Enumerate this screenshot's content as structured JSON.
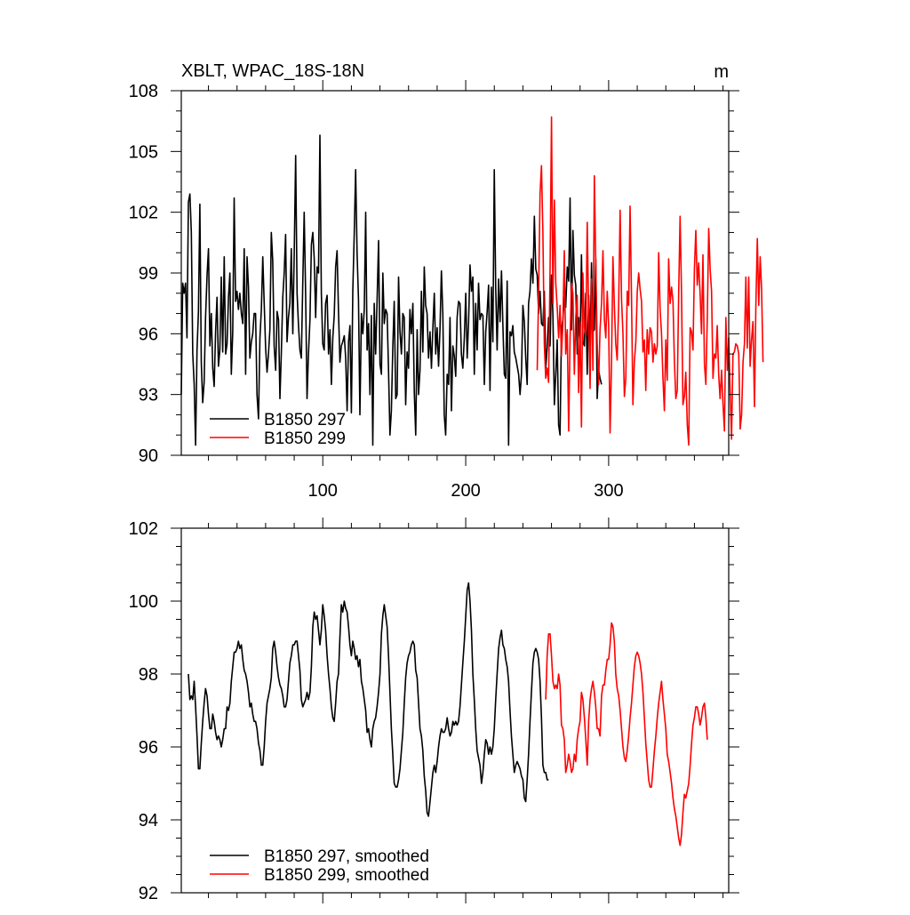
{
  "chart_data": [
    {
      "type": "line",
      "title": "XBLT, WPAC_18S-18N",
      "units": "m",
      "xlim": [
        1,
        384
      ],
      "ylim": [
        90,
        108
      ],
      "x_ticks": [
        100,
        200,
        300
      ],
      "x_tick_labels": [
        "100",
        "200",
        "300"
      ],
      "y_ticks": [
        90,
        93,
        96,
        99,
        102,
        105,
        108
      ],
      "y_tick_labels": [
        "90",
        "93",
        "96",
        "99",
        "102",
        "105",
        "108"
      ],
      "legend": {
        "position": "bottom-left"
      },
      "series": [
        {
          "name": "B1850 297",
          "color": "#000000",
          "x_start": 1,
          "values": [
            93.0,
            98.5,
            98.0,
            98.5,
            95.8,
            102.5,
            102.9,
            101.0,
            95.0,
            93.5,
            90.5,
            95.2,
            97.1,
            102.4,
            94.6,
            92.6,
            93.6,
            96.8,
            98.9,
            100.2,
            95.4,
            97.0,
            94.3,
            93.4,
            96.1,
            97.8,
            94.4,
            95.2,
            98.8,
            95.1,
            99.8,
            95.0,
            95.5,
            97.8,
            99.0,
            94.0,
            96.1,
            102.7,
            97.6,
            98.1,
            97.2,
            98.0,
            97.0,
            96.5,
            100.2,
            94.0,
            99.8,
            98.3,
            94.8,
            95.6,
            96.0,
            97.0,
            97.0,
            93.0,
            91.8,
            95.8,
            97.2,
            99.8,
            97.5,
            95.3,
            94.1,
            95.0,
            96.2,
            101.0,
            99.6,
            95.4,
            94.2,
            97.1,
            96.7,
            92.8,
            95.1,
            97.8,
            99.0,
            100.9,
            95.6,
            96.8,
            97.5,
            100.2,
            96.0,
            100.0,
            104.8,
            98.0,
            96.4,
            95.2,
            94.8,
            98.5,
            102.0,
            98.0,
            92.8,
            95.0,
            96.7,
            100.4,
            101.0,
            99.7,
            96.8,
            99.3,
            99.0,
            105.8,
            98.0,
            95.5,
            95.2,
            97.5,
            97.9,
            95.0,
            96.2,
            93.5,
            95.8,
            96.9,
            99.3,
            100.1,
            97.1,
            94.6,
            95.4,
            95.6,
            95.9,
            94.8,
            92.2,
            95.6,
            96.4,
            92.1,
            98.1,
            100.9,
            104.1,
            100.0,
            97.7,
            92.0,
            97.0,
            96.0,
            97.2,
            102.0,
            95.2,
            96.5,
            93.0,
            96.9,
            90.5,
            97.5,
            95.0,
            97.6,
            100.6,
            94.5,
            94.0,
            99.0,
            96.5,
            97.2,
            97.0,
            94.2,
            91.0,
            92.2,
            95.3,
            97.6,
            92.8,
            93.0,
            98.8,
            96.1,
            95.0,
            97.0,
            96.8,
            92.5,
            95.1,
            94.3,
            97.2,
            96.0,
            97.5,
            93.1,
            91.0,
            96.2,
            93.0,
            94.2,
            98.1,
            95.1,
            99.3,
            97.4,
            97.0,
            94.8,
            96.1,
            94.3,
            96.3,
            98.0,
            95.0,
            96.3,
            94.4,
            96.2,
            99.1,
            97.0,
            92.0,
            91.0,
            94.0,
            93.5,
            96.8,
            92.2,
            95.4,
            94.9,
            93.9,
            96.8,
            97.6,
            97.5,
            95.0,
            94.3,
            95.8,
            98.0,
            94.8,
            96.6,
            99.4,
            98.1,
            98.8,
            94.0,
            97.5,
            95.2,
            98.5,
            96.7,
            97.0,
            96.9,
            93.5,
            96.1,
            97.1,
            98.4,
            93.2,
            98.3,
            95.6,
            104.1,
            98.3,
            95.2,
            98.7,
            96.6,
            99.1,
            96.4,
            94.0,
            93.8,
            98.6,
            90.5,
            96.1,
            95.9,
            96.4,
            95.1,
            94.8,
            94.4,
            94.0,
            93.0,
            94.0,
            97.4,
            96.6,
            94.8,
            93.5,
            97.5,
            98.1,
            99.7,
            98.5,
            101.8,
            99.2,
            98.9,
            97.0,
            98.1,
            96.5,
            96.4,
            98.1,
            94.3,
            95.3,
            96.8,
            95.4,
            98.9,
            96.9,
            92.5,
            94.0,
            95.7,
            91.5,
            91.0,
            96.2,
            96.7,
            97.8,
            97.3,
            99.3,
            98.6,
            102.7,
            96.2,
            101.1,
            98.9,
            98.4,
            95.0,
            96.8,
            95.2,
            99.9,
            95.6,
            95.4,
            98.0,
            94.0,
            97.9,
            95.4,
            99.5,
            96.1,
            96.2,
            99.7,
            92.8,
            94.2,
            93.8,
            93.5
          ]
        },
        {
          "name": "B1850 299",
          "color": "#ff0000",
          "x_start": 250,
          "values": [
            94.2,
            98.0,
            102.9,
            104.3,
            101.0,
            95.5,
            93.8,
            94.3,
            93.6,
            99.2,
            106.7,
            97.5,
            102.6,
            98.5,
            97.3,
            95.8,
            97.4,
            94.9,
            96.5,
            100.1,
            95.0,
            96.2,
            91.2,
            95.8,
            98.5,
            98.0,
            94.0,
            96.8,
            97.9,
            93.1,
            96.6,
            91.4,
            99.0,
            96.3,
            95.9,
            101.5,
            96.9,
            93.3,
            98.7,
            94.2,
            103.8,
            99.5,
            95.5,
            93.5,
            96.2,
            97.5,
            100.1,
            96.7,
            95.8,
            98.1,
            96.4,
            91.1,
            94.5,
            99.8,
            97.4,
            95.5,
            94.7,
            97.5,
            102.1,
            97.7,
            96.0,
            92.9,
            93.8,
            98.1,
            97.4,
            102.3,
            97.9,
            92.5,
            94.6,
            95.6,
            98.1,
            99.0,
            98.2,
            97.6,
            95.1,
            95.7,
            93.2,
            96.2,
            95.0,
            96.3,
            96.1,
            94.6,
            95.5,
            95.0,
            95.4,
            100.0,
            97.2,
            96.0,
            93.8,
            92.2,
            95.7,
            93.7,
            99.7,
            97.5,
            98.3,
            97.6,
            94.6,
            92.8,
            93.2,
            98.0,
            101.8,
            98.0,
            92.5,
            92.9,
            94.1,
            91.5,
            90.5,
            96.3,
            96.1,
            95.2,
            99.2,
            101.1,
            98.4,
            99.5,
            98.0,
            96.0,
            99.9,
            94.5,
            93.5,
            96.8,
            101.2,
            99.2,
            98.1,
            93.8,
            95.0,
            94.8,
            96.4,
            94.0,
            92.8,
            94.2,
            92.5,
            91.2,
            96.8,
            94.2,
            95.8,
            93.2,
            90.8,
            95.0,
            95.1,
            95.5,
            95.4,
            95.0,
            91.3,
            92.0,
            94.6,
            95.5,
            98.8,
            95.3,
            98.8,
            94.4,
            95.7,
            96.6,
            92.4,
            97.5,
            100.7,
            97.4,
            99.8,
            98.2,
            94.6
          ]
        }
      ]
    },
    {
      "type": "line",
      "title": "",
      "xlim": [
        1,
        384
      ],
      "ylim": [
        92,
        102
      ],
      "x_ticks": [
        100,
        200,
        300
      ],
      "x_tick_labels": [],
      "y_ticks": [
        92,
        94,
        96,
        98,
        100,
        102
      ],
      "y_tick_labels": [
        "92",
        "94",
        "96",
        "98",
        "100",
        "102"
      ],
      "legend": {
        "position": "bottom-left"
      },
      "series": [
        {
          "name": "B1850 297, smoothed",
          "color": "#000000",
          "x_start": 6,
          "values": [
            98.0,
            97.3,
            97.4,
            97.3,
            97.8,
            97.1,
            96.3,
            95.4,
            95.4,
            96.1,
            96.7,
            97.2,
            97.6,
            97.4,
            96.9,
            96.5,
            96.5,
            96.9,
            96.7,
            96.4,
            96.2,
            96.3,
            96.2,
            96.0,
            96.2,
            96.5,
            96.5,
            97.1,
            97.0,
            97.2,
            97.8,
            98.2,
            98.6,
            98.6,
            98.7,
            98.9,
            98.7,
            98.8,
            98.4,
            98.1,
            98.0,
            97.8,
            97.5,
            97.1,
            97.2,
            96.9,
            96.7,
            96.7,
            96.5,
            96.1,
            95.9,
            95.5,
            95.5,
            96.0,
            96.7,
            97.2,
            97.4,
            97.6,
            97.9,
            98.7,
            98.9,
            98.6,
            98.2,
            97.9,
            97.7,
            97.6,
            97.4,
            97.1,
            97.1,
            97.3,
            97.8,
            98.3,
            98.5,
            98.8,
            98.8,
            98.9,
            98.9,
            98.5,
            98.1,
            97.3,
            97.1,
            97.2,
            97.3,
            97.5,
            97.3,
            97.5,
            98.2,
            99.3,
            99.7,
            99.5,
            99.6,
            99.2,
            98.8,
            99.2,
            99.9,
            99.6,
            99.2,
            98.5,
            98.0,
            97.6,
            97.1,
            96.8,
            96.7,
            97.2,
            97.8,
            98.0,
            99.0,
            99.9,
            99.7,
            100.0,
            99.8,
            99.7,
            99.3,
            98.8,
            98.5,
            98.9,
            98.7,
            98.4,
            98.5,
            98.2,
            98.4,
            97.8,
            97.6,
            97.3,
            97.0,
            96.4,
            96.5,
            96.2,
            96.0,
            96.5,
            96.7,
            96.8,
            97.1,
            97.5,
            98.0,
            99.1,
            99.6,
            99.9,
            99.6,
            99.3,
            98.5,
            97.5,
            96.5,
            95.8,
            95.0,
            94.9,
            94.9,
            95.1,
            95.4,
            95.9,
            96.4,
            97.2,
            97.9,
            98.3,
            98.5,
            98.6,
            98.8,
            98.9,
            98.8,
            98.1,
            97.9,
            97.2,
            96.5,
            96.3,
            95.9,
            95.2,
            94.8,
            94.2,
            94.1,
            94.5,
            94.9,
            95.3,
            95.5,
            95.3,
            95.6,
            96.0,
            96.3,
            96.5,
            96.4,
            96.4,
            96.5,
            96.8,
            96.5,
            96.3,
            96.4,
            96.7,
            96.6,
            96.7,
            96.6,
            96.7,
            97.1,
            97.7,
            98.3,
            98.9,
            99.6,
            100.3,
            100.5,
            100.0,
            99.2,
            98.0,
            97.3,
            96.5,
            95.9,
            95.7,
            95.5,
            95.0,
            95.3,
            95.8,
            96.2,
            96.1,
            95.8,
            96.0,
            95.8,
            96.0,
            96.5,
            97.3,
            98.0,
            98.7,
            99.0,
            99.2,
            98.8,
            98.7,
            98.4,
            98.2,
            97.8,
            97.0,
            96.3,
            95.8,
            95.3,
            95.5,
            95.6,
            95.5,
            95.4,
            95.2,
            95.1,
            94.6,
            94.5,
            95.1,
            95.8,
            96.7,
            97.5,
            98.3,
            98.6,
            98.7,
            98.6,
            98.4,
            97.8,
            96.8,
            95.5,
            95.3,
            95.3,
            95.1,
            95.1
          ]
        },
        {
          "name": "B1850 299, smoothed",
          "color": "#ff0000",
          "x_start": 256,
          "values": [
            97.3,
            98.5,
            99.1,
            99.1,
            98.5,
            97.8,
            97.6,
            97.7,
            97.6,
            98.0,
            97.7,
            96.6,
            96.5,
            96.2,
            95.3,
            95.5,
            95.8,
            95.6,
            95.3,
            95.4,
            95.8,
            95.6,
            96.2,
            96.5,
            96.7,
            97.5,
            97.3,
            96.8,
            96.2,
            95.5,
            96.7,
            97.3,
            97.6,
            97.8,
            97.5,
            97.1,
            96.5,
            96.5,
            96.3,
            97.4,
            97.7,
            97.7,
            98.1,
            98.4,
            98.4,
            98.8,
            99.4,
            99.3,
            98.9,
            98.0,
            97.6,
            97.4,
            97.0,
            96.5,
            96.0,
            95.7,
            95.6,
            95.9,
            96.3,
            96.8,
            97.2,
            97.7,
            98.2,
            98.5,
            98.6,
            98.5,
            98.3,
            98.0,
            97.5,
            96.8,
            96.1,
            95.6,
            95.1,
            94.9,
            94.9,
            95.4,
            95.9,
            96.3,
            96.8,
            97.2,
            97.5,
            97.8,
            97.3,
            96.9,
            96.5,
            95.8,
            95.6,
            95.3,
            95.0,
            94.6,
            94.3,
            94.1,
            93.8,
            93.5,
            93.3,
            93.6,
            94.2,
            94.7,
            94.6,
            94.8,
            95.0,
            95.5,
            96.1,
            96.6,
            96.8,
            97.1,
            97.1,
            96.9,
            96.6,
            96.8,
            97.1,
            97.2,
            96.8,
            96.2
          ]
        }
      ]
    }
  ]
}
